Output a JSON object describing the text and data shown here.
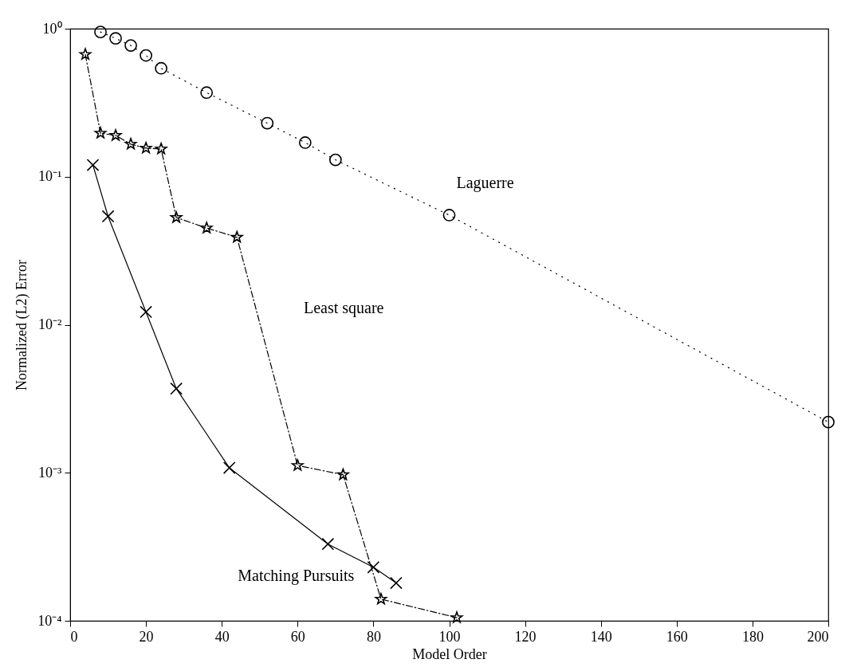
{
  "chart_data": {
    "type": "line",
    "xlabel": "Model Order",
    "ylabel": "Normalized (L2)  Error",
    "log": true,
    "grid": false,
    "xlim": [
      0,
      200
    ],
    "xticks": [
      0,
      20,
      40,
      60,
      80,
      100,
      120,
      140,
      160,
      180,
      200
    ],
    "ylim": [
      0.0001,
      1
    ],
    "yticks": [
      {
        "value": 0.0001,
        "label": "10⁻⁴"
      },
      {
        "value": 0.001,
        "label": "10⁻³"
      },
      {
        "value": 0.01,
        "label": "10⁻²"
      },
      {
        "value": 0.1,
        "label": "10⁻¹"
      },
      {
        "value": 1,
        "label": "10⁰"
      }
    ],
    "series": [
      {
        "name": "Laguerre",
        "color": "#000000",
        "marker": "circle",
        "line_style": "dotted",
        "x": [
          8,
          12,
          16,
          20,
          24,
          36,
          52,
          62,
          70,
          100,
          200
        ],
        "values": [
          0.95,
          0.86,
          0.77,
          0.66,
          0.54,
          0.37,
          0.23,
          0.17,
          0.13,
          0.055,
          0.0022
        ]
      },
      {
        "name": "Least square",
        "color": "#000000",
        "marker": "star",
        "line_style": "dashed",
        "x": [
          4,
          8,
          12,
          16,
          20,
          24,
          28,
          36,
          44,
          60,
          72,
          82,
          102
        ],
        "values": [
          0.67,
          0.197,
          0.19,
          0.166,
          0.156,
          0.154,
          0.053,
          0.045,
          0.039,
          0.00112,
          0.00097,
          0.00014,
          0.000105
        ]
      },
      {
        "name": "Matching Pursuits",
        "color": "#000000",
        "marker": "cross",
        "line_style": "solid",
        "x": [
          6,
          10,
          20,
          28,
          42,
          68,
          80,
          86
        ],
        "values": [
          0.12,
          0.054,
          0.0122,
          0.0037,
          0.00108,
          0.00033,
          0.00023,
          0.00018
        ]
      }
    ]
  }
}
